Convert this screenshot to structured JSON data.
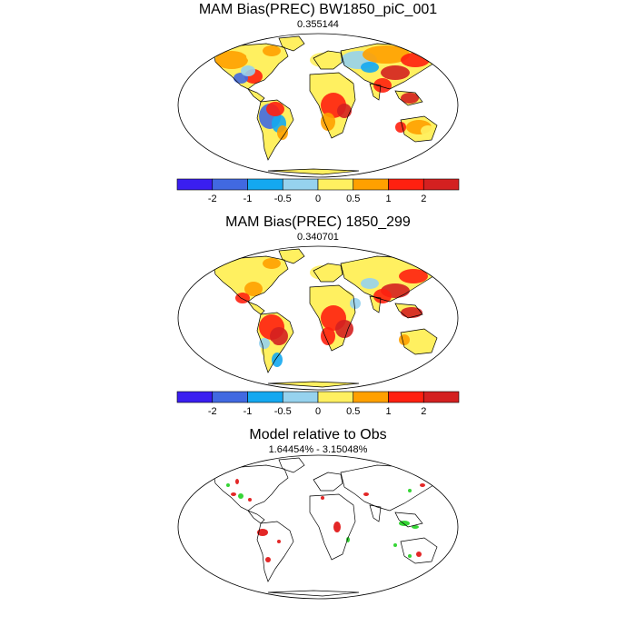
{
  "panels": [
    {
      "title": "MAM Bias(PREC) BW1850_piC_001",
      "subtitle": "0.355144"
    },
    {
      "title": "MAM Bias(PREC) 1850_299",
      "subtitle": "0.340701"
    },
    {
      "title": "Model relative to Obs",
      "subtitle": "1.64454% - 3.15048%"
    }
  ],
  "colorbar": {
    "colors": [
      "#3a1ef0",
      "#4169e1",
      "#14a8f0",
      "#96d2ee",
      "#fff060",
      "#ffa000",
      "#ff2010",
      "#d42020"
    ],
    "labels": [
      "-2",
      "-1",
      "-0.5",
      "0",
      "0.5",
      "1",
      "2"
    ]
  },
  "legend_colors": {
    "model_wetter": "#e01010",
    "model_drier": "#20d020"
  }
}
